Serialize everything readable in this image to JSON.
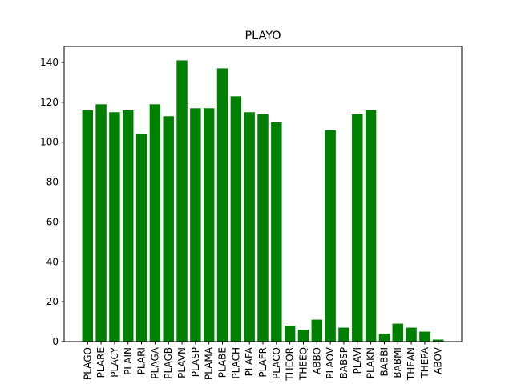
{
  "chart_data": {
    "type": "bar",
    "title": "PLAYO",
    "xlabel": "",
    "ylabel": "",
    "categories": [
      "PLAGO",
      "PLARE",
      "PLACY",
      "PLAIN",
      "PLARI",
      "PLAGA",
      "PLAGB",
      "PLAVN",
      "PLASP",
      "PLAMA",
      "PLABE",
      "PLACH",
      "PLAFA",
      "PLAFR",
      "PLACO",
      "THEOR",
      "THEEQ",
      "ABBO",
      "PLAOV",
      "BABSP",
      "PLAVI",
      "PLAKN",
      "BABBI",
      "BABMI",
      "THEAN",
      "THEPA",
      "ABOV"
    ],
    "values": [
      116,
      119,
      115,
      116,
      104,
      119,
      113,
      141,
      117,
      117,
      137,
      123,
      115,
      114,
      110,
      8,
      6,
      11,
      106,
      7,
      114,
      116,
      4,
      9,
      7,
      5,
      1
    ],
    "ylim": [
      0,
      148
    ],
    "yticks": [
      0,
      20,
      40,
      60,
      80,
      100,
      120,
      140
    ],
    "bar_color": "#008000",
    "grid": false
  }
}
